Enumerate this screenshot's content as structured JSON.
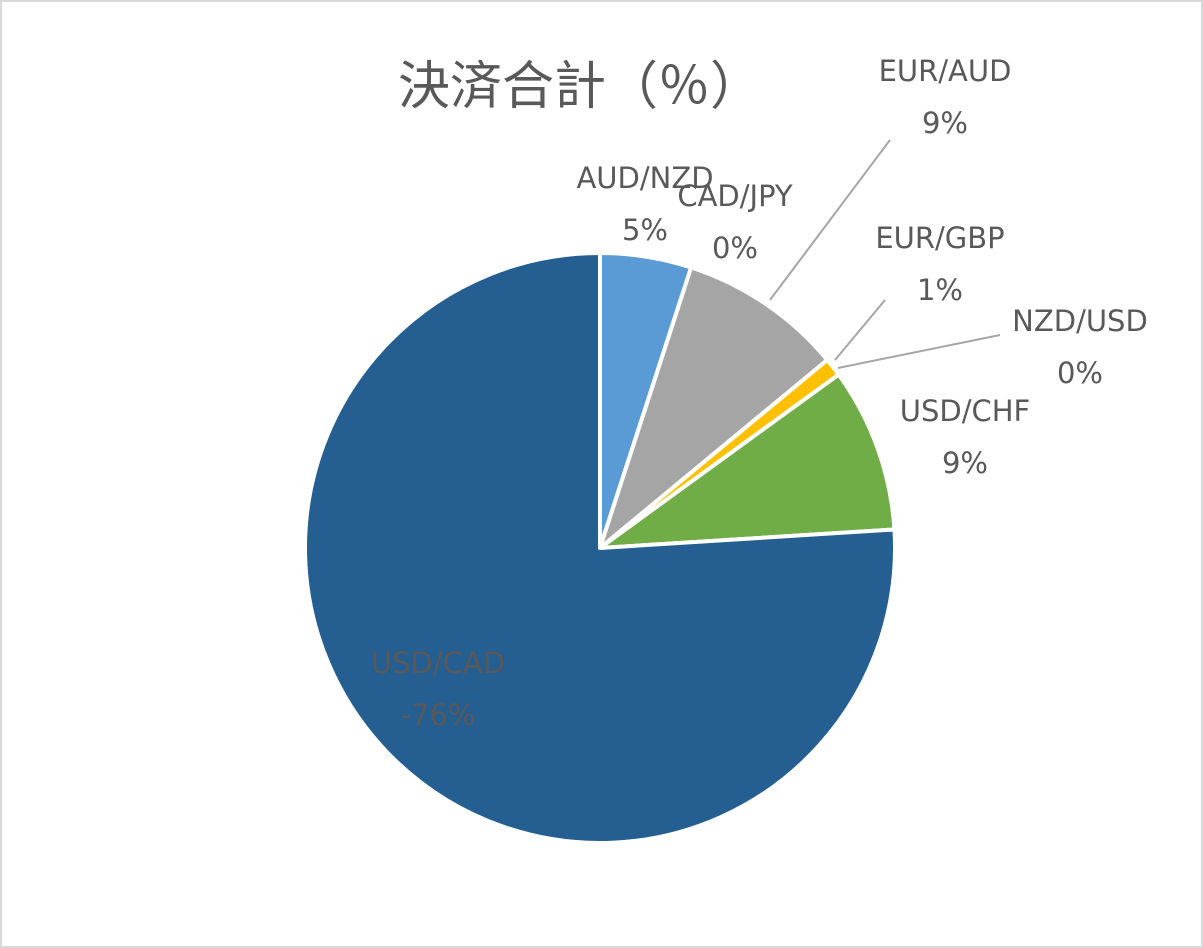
{
  "chart_data": {
    "type": "pie",
    "title": "決済合計（％）",
    "categories": [
      "AUD/NZD",
      "CAD/JPY",
      "EUR/AUD",
      "EUR/GBP",
      "NZD/USD",
      "USD/CHF",
      "USD/CAD"
    ],
    "values": [
      5,
      0,
      9,
      1,
      0,
      9,
      -76
    ],
    "value_labels": [
      "5%",
      "0%",
      "9%",
      "1%",
      "0%",
      "9%",
      "-76%"
    ],
    "colors": [
      "#5b9bd5",
      "#ed7d31",
      "#a5a5a5",
      "#ffc000",
      "#4472c4",
      "#70ad47",
      "#255e91"
    ]
  }
}
